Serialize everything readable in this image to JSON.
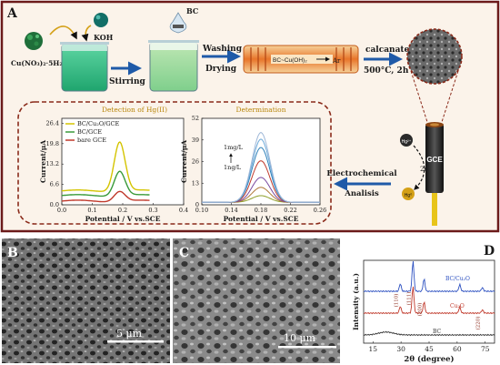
{
  "panels": {
    "A": "A",
    "B": "B",
    "C": "C",
    "D": "D"
  },
  "scheme": {
    "reagent_cu": "Cu(NO₃)₂·5H₂O",
    "reagent_koh": "KOH",
    "reagent_bc": "BC",
    "step_stirring": "Stirring",
    "step_washing": "Washing",
    "step_drying": "Drying",
    "furnace_label": "BC~Cu(OH)₂",
    "furnace_gas": "Ar",
    "step_calcanate": "calcanate",
    "calc_conditions": "500°C, 2h",
    "electrode_label": "GCE",
    "ion_hg2": "Hg²⁺",
    "ion_hg0": "Hg⁰",
    "electron": "2e⁻",
    "ec_line1": "Electrochemical",
    "ec_line2": "Analisis",
    "colors": {
      "outer_border": "#6b1a1a",
      "box_border": "#8a2a1a",
      "beaker_liquid": "#3fc48c",
      "arrow": "#1f5aa8",
      "label_title": "#b8860b"
    }
  },
  "chart_data": [
    {
      "type": "line",
      "title": "Detection of Hg(II)",
      "xlabel": "Potential / V vs.SCE",
      "ylabel": "Current/μA",
      "xlim": [
        0.0,
        0.4
      ],
      "ylim": [
        0,
        28
      ],
      "xticks": [
        "0.0",
        "0.1",
        "0.2",
        "0.3",
        "0.4"
      ],
      "yticks": [
        "0.0",
        "6.6",
        "13.2",
        "19.8",
        "26.4"
      ],
      "series": [
        {
          "name": "BC/Cu₂O/GCE",
          "color": "#d4c400",
          "base": 4.5,
          "peak_x": 0.19,
          "peak": 20.5
        },
        {
          "name": "BC/GCE",
          "color": "#3a9a3a",
          "base": 3.0,
          "peak_x": 0.19,
          "peak": 11.0
        },
        {
          "name": "bare GCE",
          "color": "#c0392b",
          "base": 1.2,
          "peak_x": 0.19,
          "peak": 4.5
        }
      ]
    },
    {
      "type": "line",
      "title": "Determination",
      "xlabel": "Potential / V vs.SCE",
      "ylabel": "Current/μA",
      "xlim": [
        0.1,
        0.26
      ],
      "ylim": [
        0,
        52
      ],
      "xticks": [
        "0.10",
        "0.14",
        "0.18",
        "0.22",
        "0.26"
      ],
      "yticks": [
        "0",
        "13",
        "26",
        "39",
        "52"
      ],
      "annotations": [
        "1mg/L",
        "1ng/L"
      ],
      "series": [
        {
          "color": "#8e9f2a",
          "peak": 4
        },
        {
          "color": "#b07a3a",
          "peak": 9
        },
        {
          "color": "#7a4aa0",
          "peak": 15
        },
        {
          "color": "#c0392b",
          "peak": 25
        },
        {
          "color": "#2c7fb8",
          "peak": 33
        },
        {
          "color": "#6aa8d8",
          "peak": 38
        },
        {
          "color": "#a0b8d8",
          "peak": 42
        }
      ],
      "peak_x": 0.18
    },
    {
      "type": "line",
      "xlabel": "2θ (degree)",
      "ylabel": "Intensity (a.u.)",
      "xticks": [
        "15",
        "30",
        "45",
        "60",
        "75"
      ],
      "xlim": [
        10,
        80
      ],
      "peak_labels": [
        "(110)",
        "(111)",
        "(200)",
        "(220)"
      ],
      "series": [
        {
          "name": "BC/Cu₂O",
          "color": "#2b4fc0"
        },
        {
          "name": "Cu₂O",
          "color": "#c0392b"
        },
        {
          "name": "BC",
          "color": "#333333"
        }
      ]
    }
  ],
  "micrographs": {
    "B_scale": "5 μm",
    "C_scale": "10 μm"
  }
}
